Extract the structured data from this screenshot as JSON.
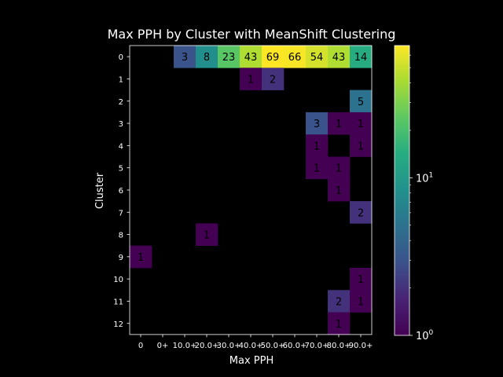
{
  "chart_data": {
    "type": "heatmap",
    "title": "Max PPH by Cluster with MeanShift Clustering",
    "xlabel": "Max PPH",
    "ylabel": "Cluster",
    "x_categories": [
      "0",
      "0+",
      "10.0+",
      "20.0+",
      "30.0+",
      "40.0+",
      "50.0+",
      "60.0+",
      "70.0+",
      "80.0+",
      "90.0+"
    ],
    "y_categories": [
      "0",
      "1",
      "2",
      "3",
      "4",
      "5",
      "6",
      "7",
      "8",
      "9",
      "10",
      "11",
      "12"
    ],
    "values": [
      [
        0,
        0,
        3,
        8,
        23,
        43,
        69,
        66,
        54,
        43,
        14
      ],
      [
        0,
        0,
        0,
        0,
        0,
        1,
        2,
        0,
        0,
        0,
        0
      ],
      [
        0,
        0,
        0,
        0,
        0,
        0,
        0,
        0,
        0,
        0,
        5
      ],
      [
        0,
        0,
        0,
        0,
        0,
        0,
        0,
        0,
        3,
        1,
        1
      ],
      [
        0,
        0,
        0,
        0,
        0,
        0,
        0,
        0,
        1,
        0,
        1
      ],
      [
        0,
        0,
        0,
        0,
        0,
        0,
        0,
        0,
        1,
        1,
        0
      ],
      [
        0,
        0,
        0,
        0,
        0,
        0,
        0,
        0,
        0,
        1,
        0
      ],
      [
        0,
        0,
        0,
        0,
        0,
        0,
        0,
        0,
        0,
        0,
        2
      ],
      [
        0,
        0,
        0,
        1,
        0,
        0,
        0,
        0,
        0,
        0,
        0
      ],
      [
        1,
        0,
        0,
        0,
        0,
        0,
        0,
        0,
        0,
        0,
        0
      ],
      [
        0,
        0,
        0,
        0,
        0,
        0,
        0,
        0,
        0,
        0,
        1
      ],
      [
        0,
        0,
        0,
        0,
        0,
        0,
        0,
        0,
        0,
        2,
        1
      ],
      [
        0,
        0,
        0,
        0,
        0,
        0,
        0,
        0,
        0,
        1,
        0
      ]
    ],
    "zero_cells": "masked (black background)",
    "colormap": "viridis",
    "color_scale": "log",
    "color_range": [
      1,
      69
    ],
    "colorbar_ticks": [
      {
        "value": 1,
        "base": "10",
        "exp": "0"
      },
      {
        "value": 10,
        "base": "10",
        "exp": "1"
      }
    ],
    "background": "#000000",
    "text_color": "#ffffff",
    "annotation_color": "#000000"
  }
}
